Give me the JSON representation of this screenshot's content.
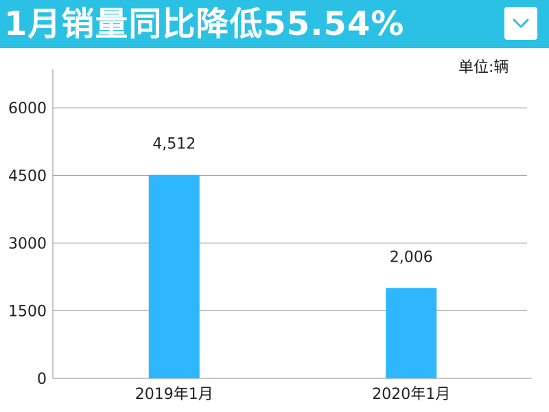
{
  "header": {
    "title": "1月销量同比降低55.54%",
    "menu_icon": "chevron-down-icon"
  },
  "chart_data": {
    "type": "bar",
    "unit_label": "单位:辆",
    "categories": [
      "2019年1月",
      "2020年1月"
    ],
    "values": [
      4512,
      2006
    ],
    "data_labels": [
      "4,512",
      "2,006"
    ],
    "yticks": [
      0,
      1500,
      3000,
      4500,
      6000
    ],
    "ylim": [
      0,
      6000
    ],
    "grid": true,
    "bar_color": "#2eb7ff",
    "grid_color": "#a6a6a6"
  },
  "colors": {
    "header_bg": "#2ac1e4",
    "chevron": "#2ac1e4"
  }
}
